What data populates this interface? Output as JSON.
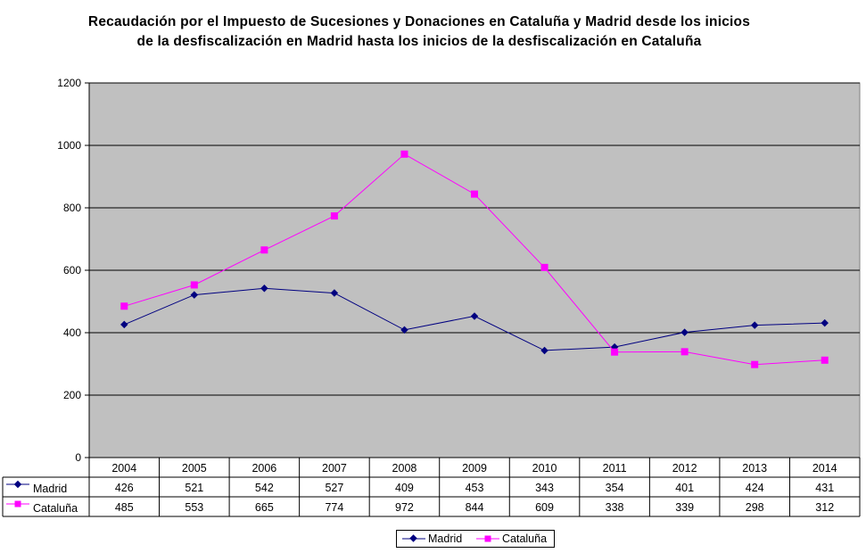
{
  "chart_data": {
    "type": "line",
    "title_lines": [
      "Recaudación por el Impuesto de Sucesiones y Donaciones en Cataluña y Madrid desde los inicios",
      "de la desfiscalización en Madrid hasta los inicios de la desfiscalización en Cataluña"
    ],
    "categories": [
      "2004",
      "2005",
      "2006",
      "2007",
      "2008",
      "2009",
      "2010",
      "2011",
      "2012",
      "2013",
      "2014"
    ],
    "series": [
      {
        "name": "Madrid",
        "values": [
          426,
          521,
          542,
          527,
          409,
          453,
          343,
          354,
          401,
          424,
          431
        ],
        "color": "#000080",
        "marker": "diamond"
      },
      {
        "name": "Cataluña",
        "values": [
          485,
          553,
          665,
          774,
          972,
          844,
          609,
          338,
          339,
          298,
          312
        ],
        "color": "#ff00ff",
        "marker": "square"
      }
    ],
    "ylim": [
      0,
      1200
    ],
    "yticks": [
      0,
      200,
      400,
      600,
      800,
      1000,
      1200
    ],
    "grid": true,
    "plot_background": "#c0c0c0",
    "data_table": true,
    "legend_position": "bottom"
  }
}
